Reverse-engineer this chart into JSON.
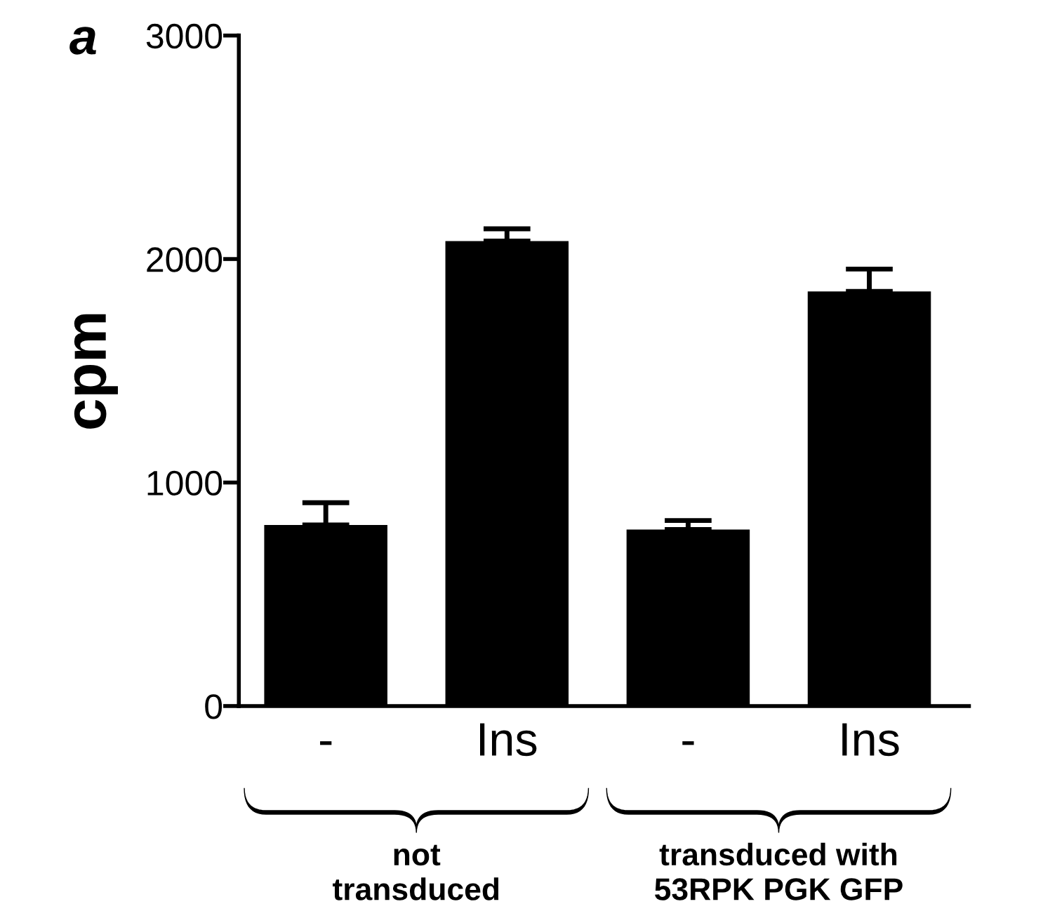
{
  "chart_data": {
    "type": "bar",
    "ylabel": "cpm",
    "categories": [
      "-",
      "Ins",
      "-",
      "Ins"
    ],
    "values": [
      810,
      2080,
      790,
      1855
    ],
    "errors": [
      [
        810,
        910
      ],
      [
        2080,
        2135
      ],
      [
        790,
        830
      ],
      [
        1855,
        1955
      ]
    ],
    "color": "#000000",
    "ylim": [
      0,
      3000
    ],
    "yticks": [
      0,
      1000,
      2000,
      3000
    ],
    "grid": false,
    "legend": false,
    "annotations": [
      "a",
      "not\ntransduced",
      "transduced with\n53RPK PGK GFP"
    ]
  }
}
